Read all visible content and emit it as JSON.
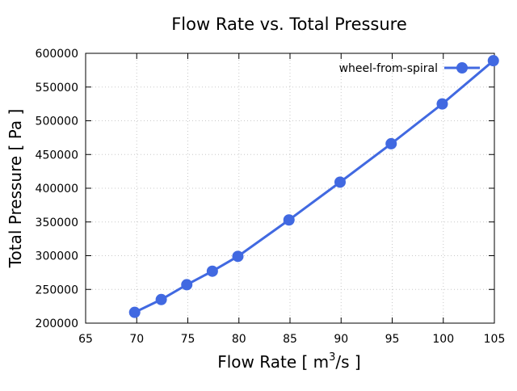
{
  "chart_data": {
    "type": "line",
    "title": "Flow Rate vs. Total Pressure",
    "xlabel_main": "Flow Rate [ m",
    "xlabel_sup": "3",
    "xlabel_tail": "/s ]",
    "ylabel": "Total Pressure [ Pa ]",
    "xlim": [
      65,
      105
    ],
    "ylim": [
      200000,
      600000
    ],
    "xticks": [
      "65",
      "70",
      "75",
      "80",
      "85",
      "90",
      "95",
      "100",
      "105"
    ],
    "yticks": [
      "200000",
      "250000",
      "300000",
      "350000",
      "400000",
      "450000",
      "500000",
      "550000",
      "600000"
    ],
    "grid": true,
    "legend_position": "top-right",
    "series": [
      {
        "name": "wheel-from-spiral",
        "color": "#4169e1",
        "x": [
          69.8,
          72.4,
          74.9,
          77.4,
          79.9,
          84.9,
          89.9,
          94.9,
          99.9,
          104.9
        ],
        "y": [
          216000,
          235000,
          257000,
          277000,
          299000,
          353000,
          409000,
          466000,
          525000,
          589000
        ]
      }
    ]
  }
}
